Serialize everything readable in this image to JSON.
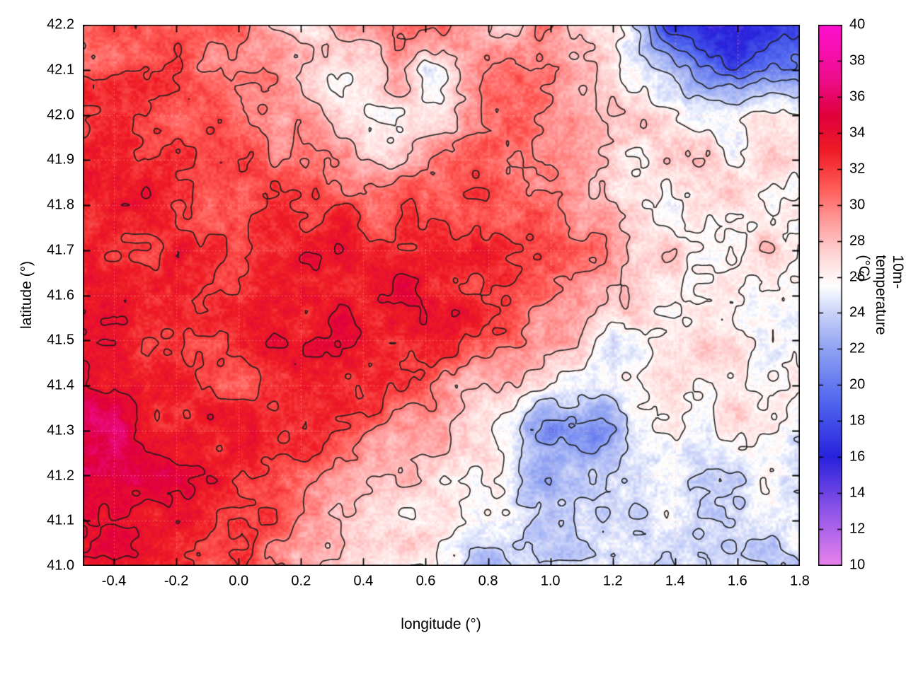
{
  "chart_data": {
    "type": "heatmap",
    "title": "",
    "xlabel": "longitude (°)",
    "ylabel": "latitude (°)",
    "colorbar_label": "10m-temperature (°C)",
    "x_range": [
      -0.5,
      1.8
    ],
    "y_range": [
      41.0,
      42.2
    ],
    "color_range": [
      10,
      40
    ],
    "xtick_labels": [
      "-0.4",
      "-0.2",
      "0.0",
      "0.2",
      "0.4",
      "0.6",
      "0.8",
      "1.0",
      "1.2",
      "1.4",
      "1.6",
      "1.8"
    ],
    "ytick_labels": [
      "41.0",
      "41.1",
      "41.2",
      "41.3",
      "41.4",
      "41.5",
      "41.6",
      "41.7",
      "41.8",
      "41.9",
      "42.0",
      "42.1",
      "42.2"
    ],
    "colorbar_tick_labels": [
      "10",
      "12",
      "14",
      "16",
      "18",
      "20",
      "22",
      "24",
      "26",
      "28",
      "30",
      "32",
      "34",
      "36",
      "38",
      "40"
    ],
    "contour_levels": [
      18,
      20,
      22,
      24,
      26,
      28,
      30,
      32,
      34
    ],
    "contour_color": "#1c1c1c",
    "grid_line_color": "#ffb4b4",
    "palette_stops": [
      [
        10,
        "#e882ec"
      ],
      [
        13,
        "#9055e8"
      ],
      [
        16,
        "#2822dc"
      ],
      [
        19,
        "#4f64ee"
      ],
      [
        22,
        "#8fa2f2"
      ],
      [
        24,
        "#c9d2f8"
      ],
      [
        25.5,
        "#ffffff"
      ],
      [
        27,
        "#ffdcdc"
      ],
      [
        29,
        "#ff9f9f"
      ],
      [
        31,
        "#ff5a55"
      ],
      [
        33,
        "#ef1c25"
      ],
      [
        35,
        "#e0003c"
      ],
      [
        37,
        "#ee0d8c"
      ],
      [
        40,
        "#ff10d0"
      ]
    ],
    "grid_lons": [
      -0.5,
      -0.4,
      -0.3,
      -0.2,
      -0.1,
      0.0,
      0.1,
      0.2,
      0.3,
      0.4,
      0.5,
      0.6,
      0.7,
      0.8,
      0.9,
      1.0,
      1.1,
      1.2,
      1.3,
      1.4,
      1.5,
      1.6,
      1.7,
      1.8
    ],
    "grid_lats": [
      42.2,
      42.1,
      42.0,
      41.9,
      41.8,
      41.7,
      41.6,
      41.5,
      41.4,
      41.3,
      41.2,
      41.1,
      41.0
    ],
    "grid_temperature_c": [
      [
        31,
        31,
        31.5,
        31,
        31,
        30,
        28.5,
        27,
        28,
        30,
        31,
        31,
        30,
        29,
        28,
        29,
        27.5,
        26,
        22,
        17,
        15,
        14.5,
        16,
        18
      ],
      [
        31.5,
        32,
        32,
        31,
        30,
        30,
        29,
        27.5,
        26,
        27,
        29,
        24,
        27,
        30,
        31,
        30,
        28,
        26,
        25,
        23,
        20,
        18.5,
        20,
        21
      ],
      [
        32,
        32,
        32,
        31.5,
        31,
        30,
        30,
        29,
        28,
        27,
        26,
        27,
        28,
        30,
        30,
        29,
        28,
        27,
        27,
        26,
        26,
        25.5,
        26,
        26
      ],
      [
        32,
        32,
        33,
        32,
        32,
        31.5,
        31,
        30,
        30,
        28.5,
        28,
        29,
        30,
        30,
        30,
        30,
        29,
        28,
        27,
        27,
        27,
        26,
        27,
        27
      ],
      [
        32.5,
        33,
        33,
        33,
        32,
        32,
        31.5,
        32,
        32,
        31,
        31,
        31,
        31,
        32,
        31,
        30,
        29,
        28,
        27,
        26.5,
        27,
        27,
        26,
        27
      ],
      [
        33,
        33,
        32.5,
        33,
        32,
        32,
        33,
        33,
        33,
        33,
        33,
        33,
        32.5,
        33,
        32,
        31,
        30,
        29,
        28,
        27,
        26.5,
        27,
        27,
        26
      ],
      [
        33,
        33.5,
        33,
        32,
        31.5,
        32,
        33,
        34,
        33.5,
        33,
        34,
        33,
        33,
        32,
        31,
        30,
        29,
        28,
        27,
        26,
        26.5,
        26,
        25.5,
        26
      ],
      [
        33.5,
        34,
        33,
        32,
        31.5,
        32,
        33,
        33,
        34,
        33.5,
        33,
        33,
        32,
        31,
        30,
        29,
        27,
        24.5,
        26,
        26,
        26.5,
        26,
        26,
        25.5
      ],
      [
        34,
        34,
        33.5,
        33,
        32,
        32,
        32.5,
        33,
        33,
        33,
        32,
        31,
        29,
        28,
        27,
        26,
        25,
        24.5,
        25,
        26,
        26.5,
        26,
        25.5,
        26
      ],
      [
        35,
        35.8,
        34,
        33.5,
        33,
        32.5,
        33,
        32,
        31,
        30,
        29,
        28,
        27,
        26,
        24,
        21,
        20.5,
        22,
        25,
        26,
        26,
        26.5,
        26,
        25
      ],
      [
        35,
        35.2,
        34.5,
        34,
        33,
        33,
        32,
        31,
        30,
        29,
        28,
        27.5,
        27,
        26,
        24,
        23,
        24,
        25,
        25.5,
        25,
        25,
        25,
        25,
        24.5
      ],
      [
        34.5,
        34.5,
        34,
        33.5,
        33,
        32,
        31,
        30,
        29,
        28,
        27.5,
        27,
        26.5,
        26,
        24,
        23.5,
        25,
        25,
        25,
        24.5,
        24.5,
        24.5,
        24.5,
        24
      ],
      [
        34,
        34,
        33.5,
        33,
        32,
        31,
        30,
        28,
        27,
        27,
        26.5,
        26,
        25,
        22,
        24,
        24,
        24.5,
        24.5,
        24.5,
        24.5,
        24,
        24,
        24,
        24
      ]
    ]
  }
}
